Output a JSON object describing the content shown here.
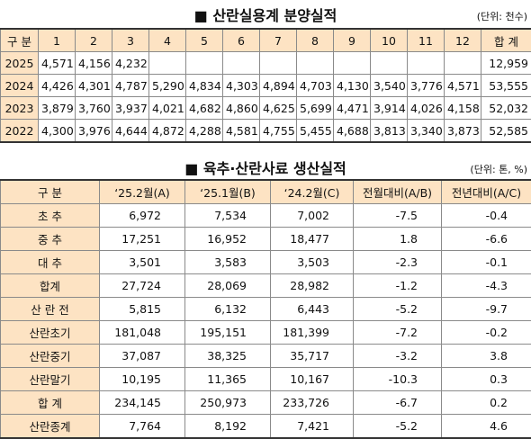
{
  "table1": {
    "title": "■ 산란실용계 분양실적",
    "unit": "(단위: 천수)",
    "header": [
      "구 분",
      "1",
      "2",
      "3",
      "4",
      "5",
      "6",
      "7",
      "8",
      "9",
      "10",
      "11",
      "12",
      "합 계"
    ],
    "rows": [
      [
        "2025",
        "4,571",
        "4,156",
        "4,232",
        null,
        null,
        null,
        null,
        null,
        null,
        null,
        null,
        null,
        "12,959"
      ],
      [
        "2024",
        "4,426",
        "4,301",
        "4,787",
        "5,290",
        "4,834",
        "4,303",
        "4,894",
        "4,703",
        "4,130",
        "3,540",
        "3,776",
        "4,571",
        "53,555"
      ],
      [
        "2023",
        "3,879",
        "3,760",
        "3,937",
        "4,021",
        "4,682",
        "4,860",
        "4,625",
        "5,699",
        "4,471",
        "3,914",
        "4,026",
        "4,158",
        "52,032"
      ],
      [
        "2022",
        "4,300",
        "3,976",
        "4,644",
        "4,872",
        "4,288",
        "4,581",
        "4,755",
        "5,455",
        "4,688",
        "3,813",
        "3,340",
        "3,873",
        "52,585"
      ]
    ]
  },
  "table2": {
    "title": "■ 육추·산란사료 생산실적",
    "unit": "(단위: 톤, %)",
    "header": [
      "구 분",
      "‘25.2월(A)",
      "‘25.1월(B)",
      "‘24.2월(C)",
      "전월대비(A/B)",
      "전년대비(A/C)"
    ],
    "rows": [
      [
        "초 추",
        "6,972",
        "7,534",
        "7,002",
        "-7.5",
        "-0.4"
      ],
      [
        "중 추",
        "17,251",
        "16,952",
        "18,477",
        "1.8",
        "-6.6"
      ],
      [
        "대 추",
        "3,501",
        "3,583",
        "3,503",
        "-2.3",
        "-0.1"
      ],
      [
        "합계",
        "27,724",
        "28,069",
        "28,982",
        "-1.2",
        "-4.3"
      ],
      [
        "산 란 전",
        "5,815",
        "6,132",
        "6,443",
        "-5.2",
        "-9.7"
      ],
      [
        "산란초기",
        "181,048",
        "195,151",
        "181,399",
        "-7.2",
        "-0.2"
      ],
      [
        "산란중기",
        "37,087",
        "38,325",
        "35,717",
        "-3.2",
        "3.8"
      ],
      [
        "산란말기",
        "10,195",
        "11,365",
        "10,167",
        "-10.3",
        "0.3"
      ],
      [
        "합 계",
        "234,145",
        "250,973",
        "233,726",
        "-6.7",
        "0.2"
      ],
      [
        "산란종계",
        "7,764",
        "8,192",
        "7,421",
        "-5.2",
        "4.6"
      ]
    ]
  }
}
